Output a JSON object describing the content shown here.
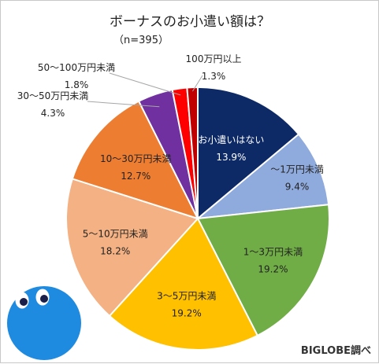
{
  "chart_data": {
    "type": "pie",
    "title": "ボーナスのお小遣い額は？",
    "subtitle": "（n=395）",
    "unit": "%",
    "slices": [
      {
        "label": "お小遣いはない",
        "value": 13.9,
        "value_label": "13.9%",
        "color": "#0d2a66",
        "label_color": "#ffffff"
      },
      {
        "label": "〜1万円未満",
        "value": 9.4,
        "value_label": "9.4%",
        "color": "#8faadc",
        "label_color": "#222222"
      },
      {
        "label": "1〜3万円未満",
        "value": 19.2,
        "value_label": "19.2%",
        "color": "#70ad47",
        "label_color": "#222222"
      },
      {
        "label": "3〜5万円未満",
        "value": 19.2,
        "value_label": "19.2%",
        "color": "#ffc000",
        "label_color": "#222222"
      },
      {
        "label": "5〜10万円未満",
        "value": 18.2,
        "value_label": "18.2%",
        "color": "#f4b183",
        "label_color": "#222222"
      },
      {
        "label": "10〜30万円未満",
        "value": 12.7,
        "value_label": "12.7%",
        "color": "#ed7d31",
        "label_color": "#222222"
      },
      {
        "label": "30〜50万円未満",
        "value": 4.3,
        "value_label": "4.3%",
        "color": "#7030a0",
        "label_color": "#222222"
      },
      {
        "label": "50〜100万円未満",
        "value": 1.8,
        "value_label": "1.8%",
        "color": "#ff0000",
        "label_color": "#222222"
      },
      {
        "label": "100万円以上",
        "value": 1.3,
        "value_label": "1.3%",
        "color": "#c00000",
        "label_color": "#222222"
      }
    ],
    "start_angle": "12 o'clock",
    "direction": "clockwise",
    "legend": "none"
  },
  "credit": "BIGLOBE調べ"
}
